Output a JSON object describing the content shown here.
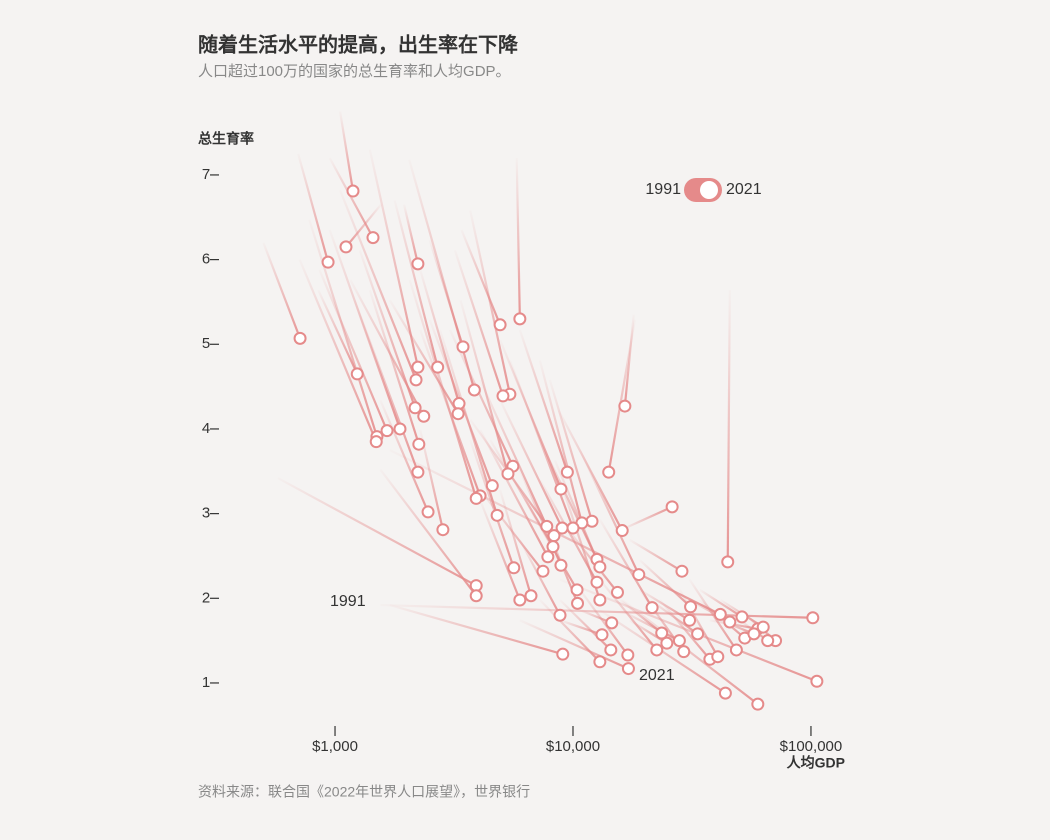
{
  "chart_data": {
    "type": "connected-scatter",
    "title": "随着生活水平的提高，出生率在下降",
    "subtitle": "人口超过100万的国家的总生育率和人均GDP。",
    "y_label": "总生育率",
    "x_label": "人均GDP",
    "source": "资料来源：联合国《2022年世界人口展望》，世界银行",
    "legend_labels": [
      "1991",
      "2021"
    ],
    "annotations": [
      "1991",
      "2021"
    ],
    "color": "#e58a8a",
    "log_x": true,
    "xlim": [
      450,
      120000
    ],
    "ylim": [
      0.5,
      7.8
    ],
    "xticks": [
      {
        "value": 1000,
        "label": "$1,000"
      },
      {
        "value": 10000,
        "label": "$10,000"
      },
      {
        "value": 100000,
        "label": "$100,000"
      }
    ],
    "yticks": [
      1,
      2,
      3,
      4,
      5,
      6,
      7
    ],
    "series": [
      {
        "x": [
          500,
          713
        ],
        "values": [
          6.2,
          5.07
        ]
      },
      {
        "x": [
          1050,
          1190
        ],
        "values": [
          7.75,
          6.81
        ]
      },
      {
        "x": [
          1560,
          1112
        ],
        "values": [
          6.65,
          6.15
        ]
      },
      {
        "x": [
          950,
          1444
        ],
        "values": [
          7.2,
          6.26
        ]
      },
      {
        "x": [
          700,
          935
        ],
        "values": [
          7.25,
          5.97
        ]
      },
      {
        "x": [
          1950,
          2230
        ],
        "values": [
          6.65,
          5.95
        ]
      },
      {
        "x": [
          5800,
          5980
        ],
        "values": [
          7.2,
          5.3
        ]
      },
      {
        "x": [
          850,
          1240
        ],
        "values": [
          5.64,
          4.65
        ]
      },
      {
        "x": [
          18000,
          16520
        ],
        "values": [
          5.35,
          4.27
        ]
      },
      {
        "x": [
          3400,
          4940
        ],
        "values": [
          6.35,
          5.23
        ]
      },
      {
        "x": [
          2500,
          3450
        ],
        "values": [
          6.23,
          4.97
        ]
      },
      {
        "x": [
          1400,
          2230
        ],
        "values": [
          7.3,
          4.73
        ]
      },
      {
        "x": [
          1780,
          2700
        ],
        "values": [
          6.7,
          4.73
        ]
      },
      {
        "x": [
          1050,
          2190
        ],
        "values": [
          6.82,
          4.58
        ]
      },
      {
        "x": [
          2050,
          3850
        ],
        "values": [
          7.18,
          4.46
        ]
      },
      {
        "x": [
          3700,
          5430
        ],
        "values": [
          6.58,
          4.41
        ]
      },
      {
        "x": [
          3190,
          5080
        ],
        "values": [
          6.11,
          4.39
        ]
      },
      {
        "x": [
          2280,
          3320
        ],
        "values": [
          5.88,
          4.3
        ]
      },
      {
        "x": [
          1700,
          3290
        ],
        "values": [
          5.52,
          4.18
        ]
      },
      {
        "x": [
          1270,
          2170
        ],
        "values": [
          6.11,
          4.25
        ]
      },
      {
        "x": [
          1160,
          2360
        ],
        "values": [
          5.76,
          4.15
        ]
      },
      {
        "x": [
          950,
          1875
        ],
        "values": [
          6.35,
          4.0
        ]
      },
      {
        "x": [
          860,
          1654
        ],
        "values": [
          5.88,
          3.98
        ]
      },
      {
        "x": [
          780,
          1500
        ],
        "values": [
          6.47,
          3.91
        ]
      },
      {
        "x": [
          710,
          1490
        ],
        "values": [
          6.0,
          3.85
        ]
      },
      {
        "x": [
          1400,
          2250
        ],
        "values": [
          5.64,
          3.82
        ]
      },
      {
        "x": [
          1210,
          2230
        ],
        "values": [
          5.52,
          3.49
        ]
      },
      {
        "x": [
          3040,
          5590
        ],
        "values": [
          5.17,
          3.56
        ]
      },
      {
        "x": [
          18200,
          14130
        ],
        "values": [
          5.29,
          3.49
        ]
      },
      {
        "x": [
          5980,
          9470
        ],
        "values": [
          5.17,
          3.49
        ]
      },
      {
        "x": [
          3370,
          5330
        ],
        "values": [
          5.52,
          3.47
        ]
      },
      {
        "x": [
          2500,
          4580
        ],
        "values": [
          5.29,
          3.33
        ]
      },
      {
        "x": [
          4940,
          8900
        ],
        "values": [
          5.05,
          3.29
        ]
      },
      {
        "x": [
          2280,
          4070
        ],
        "values": [
          5.17,
          3.21
        ]
      },
      {
        "x": [
          2060,
          3920
        ],
        "values": [
          5.76,
          3.18
        ]
      },
      {
        "x": [
          16000,
          26100
        ],
        "values": [
          2.81,
          3.08
        ]
      },
      {
        "x": [
          1550,
          2460
        ],
        "values": [
          4.34,
          3.02
        ]
      },
      {
        "x": [
          2760,
          4800
        ],
        "values": [
          5.17,
          2.98
        ]
      },
      {
        "x": [
          2280,
          2840
        ],
        "values": [
          3.99,
          2.81
        ]
      },
      {
        "x": [
          7990,
          12020
        ],
        "values": [
          4.58,
          2.91
        ]
      },
      {
        "x": [
          7260,
          10900
        ],
        "values": [
          4.81,
          2.89
        ]
      },
      {
        "x": [
          4070,
          7760
        ],
        "values": [
          4.58,
          2.85
        ]
      },
      {
        "x": [
          8700,
          16100
        ],
        "values": [
          4.22,
          2.8
        ]
      },
      {
        "x": [
          5430,
          10000
        ],
        "values": [
          4.81,
          2.83
        ]
      },
      {
        "x": [
          4940,
          9000
        ],
        "values": [
          4.34,
          2.83
        ]
      },
      {
        "x": [
          3700,
          8320
        ],
        "values": [
          4.11,
          2.74
        ]
      },
      {
        "x": [
          4490,
          8240
        ],
        "values": [
          3.87,
          2.61
        ]
      },
      {
        "x": [
          7260,
          12610
        ],
        "values": [
          3.87,
          2.46
        ]
      },
      {
        "x": [
          4070,
          7840
        ],
        "values": [
          3.99,
          2.49
        ]
      },
      {
        "x": [
          8390,
          12970
        ],
        "values": [
          3.63,
          2.37
        ]
      },
      {
        "x": [
          5980,
          8900
        ],
        "values": [
          3.52,
          2.39
        ]
      },
      {
        "x": [
          3700,
          5640
        ],
        "values": [
          3.87,
          2.36
        ]
      },
      {
        "x": [
          4070,
          7480
        ],
        "values": [
          3.28,
          2.32
        ]
      },
      {
        "x": [
          17300,
          28700
        ],
        "values": [
          2.69,
          2.32
        ]
      },
      {
        "x": [
          45600,
          44700
        ],
        "values": [
          5.64,
          2.43
        ]
      },
      {
        "x": [
          575,
          3920
        ],
        "values": [
          3.42,
          2.15
        ]
      },
      {
        "x": [
          1550,
          3920
        ],
        "values": [
          3.52,
          2.03
        ]
      },
      {
        "x": [
          4070,
          5980
        ],
        "values": [
          3.16,
          1.98
        ]
      },
      {
        "x": [
          4940,
          6660
        ],
        "values": [
          3.28,
          2.03
        ]
      },
      {
        "x": [
          10700,
          18900
        ],
        "values": [
          3.75,
          2.28
        ]
      },
      {
        "x": [
          7260,
          12610
        ],
        "values": [
          3.4,
          2.19
        ]
      },
      {
        "x": [
          6280,
          10400
        ],
        "values": [
          3.16,
          2.1
        ]
      },
      {
        "x": [
          8820,
          15380
        ],
        "values": [
          2.93,
          2.07
        ]
      },
      {
        "x": [
          7260,
          10450
        ],
        "values": [
          3.04,
          1.94
        ]
      },
      {
        "x": [
          8820,
          12970
        ],
        "values": [
          3.4,
          1.98
        ]
      },
      {
        "x": [
          12970,
          21500
        ],
        "values": [
          2.93,
          1.89
        ]
      },
      {
        "x": [
          5980,
          8820
        ],
        "values": [
          2.69,
          1.8
        ]
      },
      {
        "x": [
          19100,
          31200
        ],
        "values": [
          2.45,
          1.9
        ]
      },
      {
        "x": [
          1700,
          41600
        ],
        "values": [
          3.75,
          1.81
        ]
      },
      {
        "x": [
          1550,
          101800
        ],
        "values": [
          1.92,
          1.77
        ]
      },
      {
        "x": [
          8820,
          105900
        ],
        "values": [
          2.22,
          1.02
        ]
      },
      {
        "x": [
          16100,
          59800
        ],
        "values": [
          1.98,
          0.75
        ]
      },
      {
        "x": [
          12970,
          43700
        ],
        "values": [
          1.86,
          0.88
        ]
      },
      {
        "x": [
          5980,
          17100
        ],
        "values": [
          1.74,
          1.17
        ]
      },
      {
        "x": [
          7260,
          12970
        ],
        "values": [
          1.98,
          1.25
        ]
      },
      {
        "x": [
          1700,
          9060
        ],
        "values": [
          1.92,
          1.34
        ]
      },
      {
        "x": [
          8820,
          14420
        ],
        "values": [
          1.98,
          1.39
        ]
      },
      {
        "x": [
          10700,
          17000
        ],
        "values": [
          2.1,
          1.33
        ]
      },
      {
        "x": [
          12970,
          22500
        ],
        "values": [
          2.22,
          1.39
        ]
      },
      {
        "x": [
          19100,
          29200
        ],
        "values": [
          2.1,
          1.37
        ]
      },
      {
        "x": [
          23200,
          37600
        ],
        "values": [
          1.98,
          1.28
        ]
      },
      {
        "x": [
          28100,
          40600
        ],
        "values": [
          2.1,
          1.31
        ]
      },
      {
        "x": [
          30900,
          48600
        ],
        "values": [
          2.22,
          1.39
        ]
      },
      {
        "x": [
          34100,
          52700
        ],
        "values": [
          1.98,
          1.53
        ]
      },
      {
        "x": [
          37500,
          59800
        ],
        "values": [
          1.74,
          1.64
        ]
      },
      {
        "x": [
          50300,
          71000
        ],
        "values": [
          1.86,
          1.5
        ]
      },
      {
        "x": [
          41600,
          63000
        ],
        "values": [
          1.98,
          1.66
        ]
      },
      {
        "x": [
          19100,
          30900
        ],
        "values": [
          2.1,
          1.74
        ]
      },
      {
        "x": [
          21100,
          33400
        ],
        "values": [
          1.98,
          1.58
        ]
      },
      {
        "x": [
          15800,
          28000
        ],
        "values": [
          1.86,
          1.5
        ]
      },
      {
        "x": [
          15800,
          23600
        ],
        "values": [
          1.98,
          1.59
        ]
      },
      {
        "x": [
          10700,
          14550
        ],
        "values": [
          1.86,
          1.71
        ]
      },
      {
        "x": [
          8820,
          13240
        ],
        "values": [
          1.74,
          1.57
        ]
      },
      {
        "x": [
          17300,
          24800
        ],
        "values": [
          1.74,
          1.47
        ]
      },
      {
        "x": [
          30900,
          45600
        ],
        "values": [
          1.98,
          1.72
        ]
      },
      {
        "x": [
          34100,
          51300
        ],
        "values": [
          2.1,
          1.78
        ]
      },
      {
        "x": [
          41600,
          57600
        ],
        "values": [
          1.74,
          1.58
        ]
      },
      {
        "x": [
          50300,
          65800
        ],
        "values": [
          1.74,
          1.5
        ]
      }
    ]
  }
}
